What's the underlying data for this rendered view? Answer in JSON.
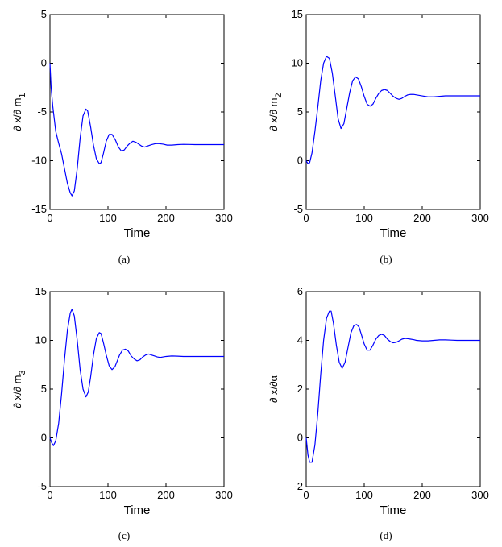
{
  "colors": {
    "line": "#0000ff",
    "axis": "#000000"
  },
  "chart_data": [
    {
      "type": "line",
      "caption": "(a)",
      "xlabel": "Time",
      "ylabel_main": "∂ x/∂ m",
      "ylabel_sub": "1",
      "xlim": [
        0,
        300
      ],
      "ylim": [
        -15,
        5
      ],
      "xticks": [
        0,
        100,
        200,
        300
      ],
      "yticks": [
        -15,
        -10,
        -5,
        0,
        5
      ],
      "grid": false,
      "x": [
        0,
        2,
        5,
        10,
        15,
        20,
        25,
        30,
        35,
        38,
        42,
        47,
        52,
        57,
        62,
        65,
        70,
        75,
        80,
        85,
        88,
        92,
        97,
        102,
        107,
        113,
        118,
        123,
        128,
        133,
        138,
        143,
        148,
        153,
        158,
        163,
        168,
        175,
        182,
        188,
        195,
        202,
        210,
        220,
        230,
        240,
        250,
        260,
        270,
        280,
        290,
        300
      ],
      "y": [
        0,
        -2.5,
        -4.5,
        -7,
        -8.2,
        -9.3,
        -10.8,
        -12.3,
        -13.3,
        -13.6,
        -13.1,
        -10.8,
        -7.7,
        -5.4,
        -4.7,
        -4.9,
        -6.5,
        -8.4,
        -9.8,
        -10.3,
        -10.2,
        -9.3,
        -8.0,
        -7.3,
        -7.3,
        -7.9,
        -8.6,
        -9.0,
        -8.9,
        -8.5,
        -8.2,
        -8.0,
        -8.1,
        -8.3,
        -8.5,
        -8.6,
        -8.5,
        -8.35,
        -8.25,
        -8.25,
        -8.3,
        -8.4,
        -8.4,
        -8.35,
        -8.32,
        -8.33,
        -8.35,
        -8.35,
        -8.35,
        -8.35,
        -8.35,
        -8.35
      ]
    },
    {
      "type": "line",
      "caption": "(b)",
      "xlabel": "Time",
      "ylabel_main": "∂ x/∂ m",
      "ylabel_sub": "2",
      "xlim": [
        0,
        300
      ],
      "ylim": [
        -5,
        15
      ],
      "xticks": [
        0,
        100,
        200,
        300
      ],
      "yticks": [
        -5,
        0,
        5,
        10,
        15
      ],
      "grid": false,
      "x": [
        0,
        3,
        6,
        10,
        15,
        20,
        25,
        30,
        35,
        40,
        45,
        50,
        55,
        60,
        65,
        70,
        75,
        80,
        85,
        90,
        95,
        100,
        105,
        110,
        115,
        120,
        125,
        130,
        135,
        140,
        145,
        150,
        155,
        160,
        165,
        170,
        175,
        180,
        185,
        190,
        200,
        210,
        220,
        230,
        240,
        250,
        260,
        270,
        280,
        290,
        300
      ],
      "y": [
        0,
        -0.3,
        -0.2,
        0.8,
        3,
        5.5,
        8.2,
        10,
        10.7,
        10.5,
        9,
        6.7,
        4.3,
        3.3,
        3.8,
        5.4,
        7.0,
        8.2,
        8.6,
        8.4,
        7.6,
        6.6,
        5.8,
        5.6,
        5.8,
        6.4,
        6.9,
        7.2,
        7.3,
        7.2,
        6.9,
        6.6,
        6.4,
        6.3,
        6.4,
        6.6,
        6.75,
        6.8,
        6.8,
        6.75,
        6.65,
        6.55,
        6.55,
        6.6,
        6.65,
        6.65,
        6.65,
        6.65,
        6.65,
        6.65,
        6.65
      ]
    },
    {
      "type": "line",
      "caption": "(c)",
      "xlabel": "Time",
      "ylabel_main": "∂ x/∂ m",
      "ylabel_sub": "3",
      "xlim": [
        0,
        300
      ],
      "ylim": [
        -5,
        15
      ],
      "xticks": [
        0,
        100,
        200,
        300
      ],
      "yticks": [
        -5,
        0,
        5,
        10,
        15
      ],
      "grid": false,
      "x": [
        0,
        3,
        6,
        10,
        15,
        20,
        25,
        30,
        35,
        38,
        42,
        47,
        52,
        57,
        62,
        66,
        70,
        75,
        80,
        85,
        88,
        92,
        97,
        102,
        107,
        112,
        116,
        120,
        125,
        130,
        135,
        140,
        145,
        150,
        155,
        160,
        165,
        170,
        175,
        180,
        185,
        190,
        200,
        210,
        220,
        230,
        240,
        250,
        260,
        270,
        280,
        290,
        300
      ],
      "y": [
        0,
        -0.5,
        -0.8,
        -0.3,
        1.5,
        4.5,
        8,
        11,
        12.8,
        13.2,
        12.5,
        10,
        7,
        5,
        4.2,
        4.7,
        6.2,
        8.5,
        10.2,
        10.8,
        10.7,
        9.8,
        8.5,
        7.4,
        7.0,
        7.3,
        7.9,
        8.5,
        9.0,
        9.1,
        8.9,
        8.4,
        8.1,
        7.9,
        8.0,
        8.3,
        8.5,
        8.6,
        8.5,
        8.4,
        8.3,
        8.25,
        8.35,
        8.4,
        8.38,
        8.35,
        8.35,
        8.35,
        8.35,
        8.35,
        8.35,
        8.35,
        8.35
      ]
    },
    {
      "type": "line",
      "caption": "(d)",
      "xlabel": "Time",
      "ylabel_main": "∂ x/∂α",
      "ylabel_sub": "",
      "xlim": [
        0,
        300
      ],
      "ylim": [
        -2,
        6
      ],
      "xticks": [
        0,
        100,
        200,
        300
      ],
      "yticks": [
        -2,
        0,
        2,
        4,
        6
      ],
      "grid": false,
      "x": [
        0,
        3,
        6,
        10,
        15,
        20,
        25,
        30,
        35,
        40,
        43,
        47,
        52,
        57,
        62,
        67,
        72,
        77,
        82,
        87,
        91,
        95,
        100,
        105,
        110,
        115,
        120,
        125,
        130,
        135,
        140,
        145,
        150,
        155,
        160,
        165,
        170,
        175,
        180,
        185,
        190,
        200,
        210,
        220,
        230,
        240,
        250,
        260,
        270,
        280,
        290,
        300
      ],
      "y": [
        0,
        -0.7,
        -1.0,
        -1.0,
        -0.3,
        1.0,
        2.6,
        4.0,
        4.9,
        5.2,
        5.2,
        4.7,
        3.8,
        3.1,
        2.85,
        3.1,
        3.7,
        4.3,
        4.6,
        4.65,
        4.55,
        4.25,
        3.85,
        3.6,
        3.6,
        3.8,
        4.05,
        4.2,
        4.25,
        4.2,
        4.05,
        3.95,
        3.9,
        3.92,
        3.98,
        4.05,
        4.08,
        4.07,
        4.05,
        4.03,
        4.0,
        3.98,
        3.98,
        4.0,
        4.02,
        4.02,
        4.01,
        4.0,
        4.0,
        4.0,
        4.0,
        4.0
      ]
    }
  ]
}
